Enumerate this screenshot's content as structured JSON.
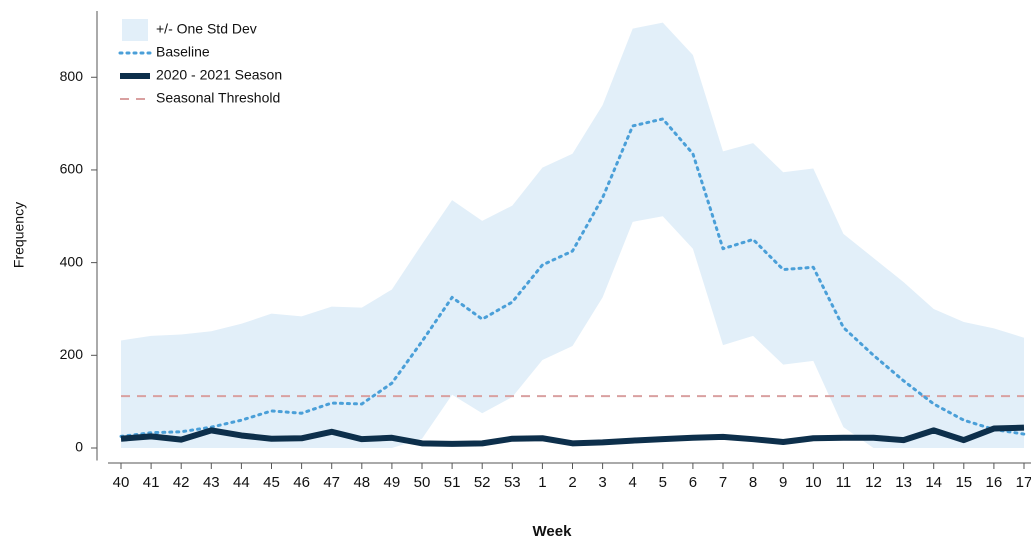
{
  "chart_data": {
    "type": "line",
    "xlabel": "Week",
    "ylabel": "Frequency",
    "categories": [
      "40",
      "41",
      "42",
      "43",
      "44",
      "45",
      "46",
      "47",
      "48",
      "49",
      "50",
      "51",
      "52",
      "53",
      "1",
      "2",
      "3",
      "4",
      "5",
      "6",
      "7",
      "8",
      "9",
      "10",
      "11",
      "12",
      "13",
      "14",
      "15",
      "16",
      "17"
    ],
    "ylim": [
      -27,
      943
    ],
    "yticks": [
      0,
      200,
      400,
      600,
      800
    ],
    "legend": "upper left",
    "band": {
      "name": "+/- One Std Dev",
      "color": "#e2eff9",
      "upper": [
        232,
        242,
        245,
        252,
        268,
        290,
        284,
        305,
        303,
        342,
        440,
        535,
        490,
        523,
        605,
        635,
        740,
        905,
        918,
        848,
        640,
        658,
        595,
        603,
        462,
        410,
        358,
        300,
        272,
        258,
        238
      ],
      "lower": [
        0,
        0,
        0,
        0,
        0,
        0,
        0,
        0,
        0,
        0,
        20,
        115,
        75,
        110,
        190,
        220,
        325,
        488,
        500,
        430,
        222,
        242,
        180,
        188,
        45,
        0,
        0,
        0,
        0,
        0,
        0
      ]
    },
    "series": [
      {
        "name": "Baseline",
        "color": "#4a9fd8",
        "style": "dotted",
        "values": [
          25,
          33,
          35,
          45,
          60,
          80,
          75,
          97,
          95,
          140,
          230,
          325,
          278,
          315,
          395,
          425,
          540,
          695,
          710,
          635,
          430,
          450,
          385,
          390,
          260,
          200,
          145,
          95,
          60,
          40,
          30
        ]
      },
      {
        "name": "2020 - 2021 Season",
        "color": "#0d2f4b",
        "style": "solid",
        "values": [
          20,
          25,
          18,
          38,
          27,
          20,
          21,
          35,
          19,
          22,
          10,
          9,
          10,
          20,
          21,
          10,
          12,
          16,
          19,
          22,
          24,
          19,
          13,
          21,
          22,
          22,
          17,
          38,
          17,
          42,
          44
        ]
      }
    ],
    "threshold": {
      "name": "Seasonal Threshold",
      "color": "#d9a0a0",
      "value": 112
    }
  }
}
